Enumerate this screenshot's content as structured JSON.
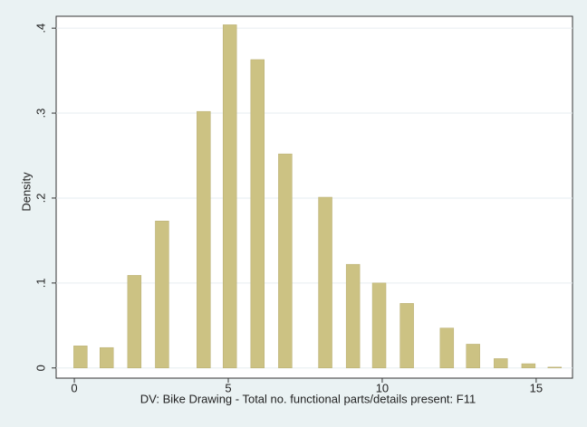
{
  "chart_data": {
    "type": "bar",
    "x": [
      0.2,
      1.05,
      1.95,
      2.85,
      4.2,
      5.05,
      5.95,
      6.85,
      8.15,
      9.05,
      9.9,
      10.8,
      12.1,
      12.95,
      13.85,
      14.75,
      15.6
    ],
    "values": [
      0.026,
      0.024,
      0.109,
      0.173,
      0.302,
      0.404,
      0.363,
      0.252,
      0.201,
      0.122,
      0.1,
      0.076,
      0.047,
      0.028,
      0.011,
      0.005,
      0.001
    ],
    "color": "#ccc283",
    "xlabel": "DV: Bike Drawing - Total no. functional parts/details present: F11",
    "ylabel": "Density",
    "xlim": [
      -0.59,
      16.18
    ],
    "xticks": [
      0,
      5,
      10,
      15
    ],
    "ylim": [
      -0.012,
      0.414
    ],
    "yticks": [
      0,
      {
        "value": 0.1,
        "label": ".1"
      },
      {
        "value": 0.2,
        "label": ".2"
      },
      {
        "value": 0.3,
        "label": ".3"
      },
      {
        "value": 0.4,
        "label": ".4"
      }
    ],
    "grid": true
  }
}
